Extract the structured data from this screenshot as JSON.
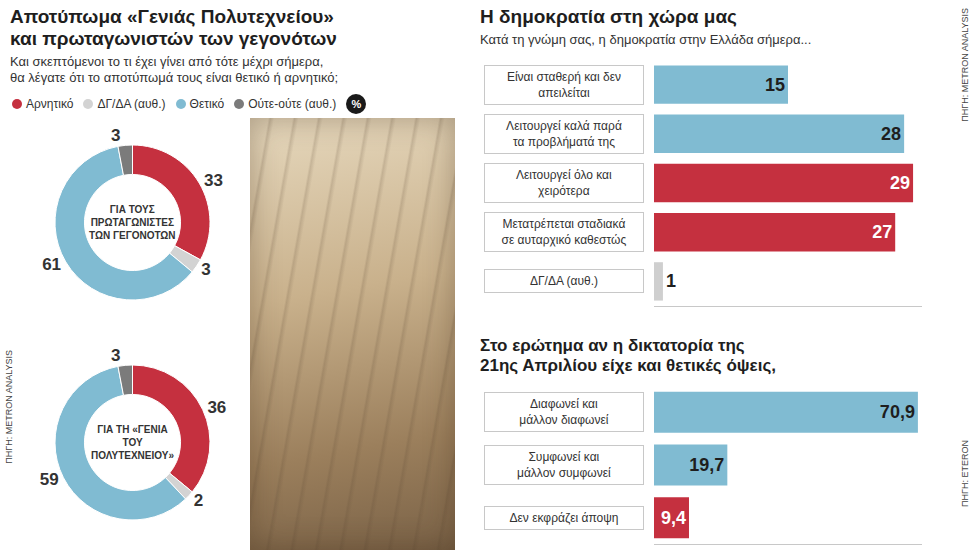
{
  "left_panel": {
    "title": [
      "Αποτύπωμα «Γενιάς Πολυτεχνείου»",
      "και πρωταγωνιστών των γεγονότων"
    ],
    "subtitle": [
      "Και σκεπτόμενοι το τι έχει γίνει από τότε μέχρι σήμερα,",
      "θα λέγατε ότι το αποτύπωμά τους είναι θετικό ή αρνητικό;"
    ],
    "unit": "%",
    "source": "ΠΗΓΗ: METRON ANALYSIS"
  },
  "chart_data": [
    {
      "type": "pie",
      "title": "ΓΙΑ ΤΟΥΣ ΠΡΩΤΑΓΩΝΙΣΤΕΣ ΤΩΝ ΓΕΓΟΝΟΤΩΝ",
      "categories": [
        "Αρνητικό",
        "ΔΓ/ΔΑ (αυθ.)",
        "Θετικό",
        "Ούτε-ούτε (αυθ.)"
      ],
      "values": [
        33,
        3,
        61,
        3
      ],
      "colors": [
        "#c5303f",
        "#d3d3d3",
        "#80bbd2",
        "#7b7b7b"
      ],
      "data_labels": true,
      "legend": "top"
    },
    {
      "type": "pie",
      "title": "ΓΙΑ ΤΗ «ΓΕΝΙΑ ΤΟΥ ΠΟΛΥΤΕΧΝΕΙΟΥ»",
      "categories": [
        "Αρνητικό",
        "ΔΓ/ΔΑ (αυθ.)",
        "Θετικό",
        "Ούτε-ούτε (αυθ.)"
      ],
      "values": [
        36,
        2,
        59,
        3
      ],
      "colors": [
        "#c5303f",
        "#d3d3d3",
        "#80bbd2",
        "#7b7b7b"
      ],
      "data_labels": true
    },
    {
      "type": "bar",
      "orientation": "horizontal",
      "title": [
        "Η δημοκρατία στη χώρα μας"
      ],
      "subtitle": "Κατά τη γνώμη σας, η δημοκρατία στην Ελλάδα σήμερα...",
      "source": "ΠΗΓΗ: METRON ANALYSIS",
      "categories": [
        "Είναι σταθερή και δεν απειλείται",
        "Λειτουργεί καλά παρά τα προβλήματά της",
        "Λειτουργεί όλο και χειρότερα",
        "Μετατρέπεται σταδιακά σε αυταρχικό καθεστώς",
        "ΔΓ/ΔΑ (αυθ.)"
      ],
      "values": [
        15,
        28,
        29,
        27,
        1
      ],
      "colors": [
        "#80bbd2",
        "#80bbd2",
        "#c5303f",
        "#c5303f",
        "#cfcfcf"
      ],
      "xlim": [
        0,
        30
      ],
      "grid": false,
      "data_labels": true,
      "tick_labels": "y"
    },
    {
      "type": "bar",
      "orientation": "horizontal",
      "title": [
        "Στο ερώτημα αν η δικτατορία της",
        "21ης Απριλίου είχε και θετικές όψεις,"
      ],
      "source": "ΠΗΓΗ: ETERON",
      "categories": [
        "Διαφωνεί και μάλλον διαφωνεί",
        "Συμφωνεί και μάλλον συμφωνεί",
        "Δεν εκφράζει άποψη"
      ],
      "values": [
        70.9,
        19.7,
        9.4
      ],
      "value_labels": [
        "70,9",
        "19,7",
        "9,4"
      ],
      "colors": [
        "#80bbd2",
        "#80bbd2",
        "#c5303f"
      ],
      "xlim": [
        0,
        72
      ],
      "grid": false,
      "data_labels": true,
      "tick_labels": "y"
    }
  ]
}
